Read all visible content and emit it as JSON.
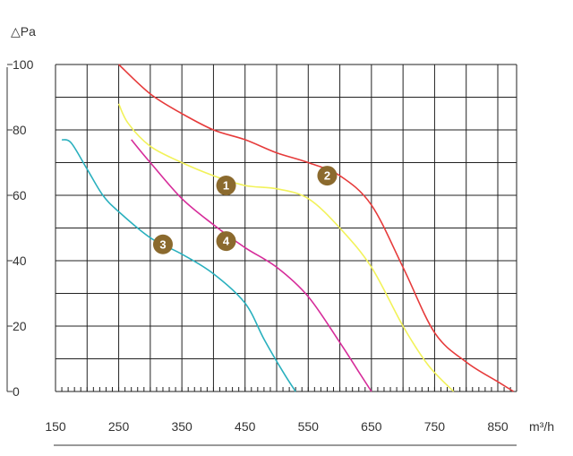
{
  "chart_data": {
    "type": "line",
    "ylabel": "△Pa",
    "xlabel": "m³/h",
    "ylim": [
      0,
      100
    ],
    "xlim": [
      150,
      900
    ],
    "yticks": [
      0,
      20,
      40,
      60,
      80,
      100
    ],
    "xticks": [
      150,
      250,
      350,
      450,
      550,
      650,
      750,
      850
    ],
    "grid": true,
    "series": [
      {
        "name": "1",
        "color": "#f2f25a",
        "label_at": {
          "x": 420,
          "y": 63
        },
        "points": [
          [
            250,
            88
          ],
          [
            265,
            82
          ],
          [
            300,
            75
          ],
          [
            350,
            70
          ],
          [
            400,
            66
          ],
          [
            450,
            63
          ],
          [
            500,
            62
          ],
          [
            550,
            59
          ],
          [
            600,
            50
          ],
          [
            650,
            38
          ],
          [
            700,
            20
          ],
          [
            740,
            8
          ],
          [
            780,
            0
          ]
        ]
      },
      {
        "name": "2",
        "color": "#e63b3b",
        "label_at": {
          "x": 580,
          "y": 66
        },
        "points": [
          [
            250,
            100
          ],
          [
            300,
            91
          ],
          [
            350,
            85
          ],
          [
            400,
            80
          ],
          [
            450,
            77
          ],
          [
            500,
            73
          ],
          [
            550,
            70
          ],
          [
            600,
            66
          ],
          [
            650,
            57
          ],
          [
            700,
            38
          ],
          [
            750,
            18
          ],
          [
            800,
            9
          ],
          [
            850,
            3
          ],
          [
            875,
            0
          ]
        ]
      },
      {
        "name": "3",
        "color": "#2ab0be",
        "label_at": {
          "x": 320,
          "y": 45
        },
        "points": [
          [
            160,
            77
          ],
          [
            175,
            76
          ],
          [
            200,
            68
          ],
          [
            225,
            60
          ],
          [
            250,
            55
          ],
          [
            300,
            47
          ],
          [
            350,
            42
          ],
          [
            400,
            36
          ],
          [
            450,
            27
          ],
          [
            480,
            16
          ],
          [
            510,
            6
          ],
          [
            530,
            0
          ]
        ]
      },
      {
        "name": "4",
        "color": "#d62c9a",
        "label_at": {
          "x": 420,
          "y": 46
        },
        "points": [
          [
            270,
            77
          ],
          [
            300,
            70
          ],
          [
            350,
            59
          ],
          [
            400,
            51
          ],
          [
            450,
            44
          ],
          [
            500,
            38
          ],
          [
            550,
            29
          ],
          [
            600,
            15
          ],
          [
            630,
            6
          ],
          [
            650,
            0
          ]
        ]
      }
    ]
  }
}
